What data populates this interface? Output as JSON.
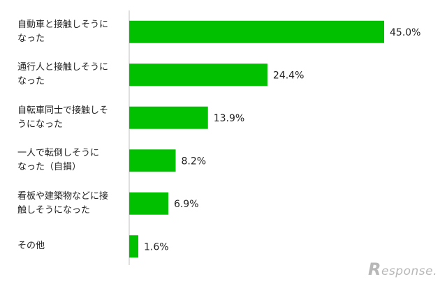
{
  "chart_data": {
    "type": "bar",
    "orientation": "horizontal",
    "title": "",
    "xlabel": "",
    "ylabel": "",
    "categories": [
      [
        "自動車と接触しそうに",
        "なった"
      ],
      [
        "通行人と接触しそうに",
        "なった"
      ],
      [
        "自転車同士で接触しそ",
        "うになった"
      ],
      [
        "一人で転倒しそうに",
        "なった（自損）"
      ],
      [
        "看板や建築物などに接",
        "触しそうになった"
      ],
      [
        "その他"
      ]
    ],
    "values": [
      45.0,
      24.4,
      13.9,
      8.2,
      6.9,
      1.6
    ],
    "value_labels": [
      "45.0%",
      "24.4%",
      "13.9%",
      "8.2%",
      "6.9%",
      "1.6%"
    ],
    "xlim": [
      0,
      50
    ],
    "grid": false,
    "legend": "none",
    "bar_color": "#00c000"
  },
  "watermark": {
    "brand_initial": "R",
    "brand_rest": "esponse."
  }
}
